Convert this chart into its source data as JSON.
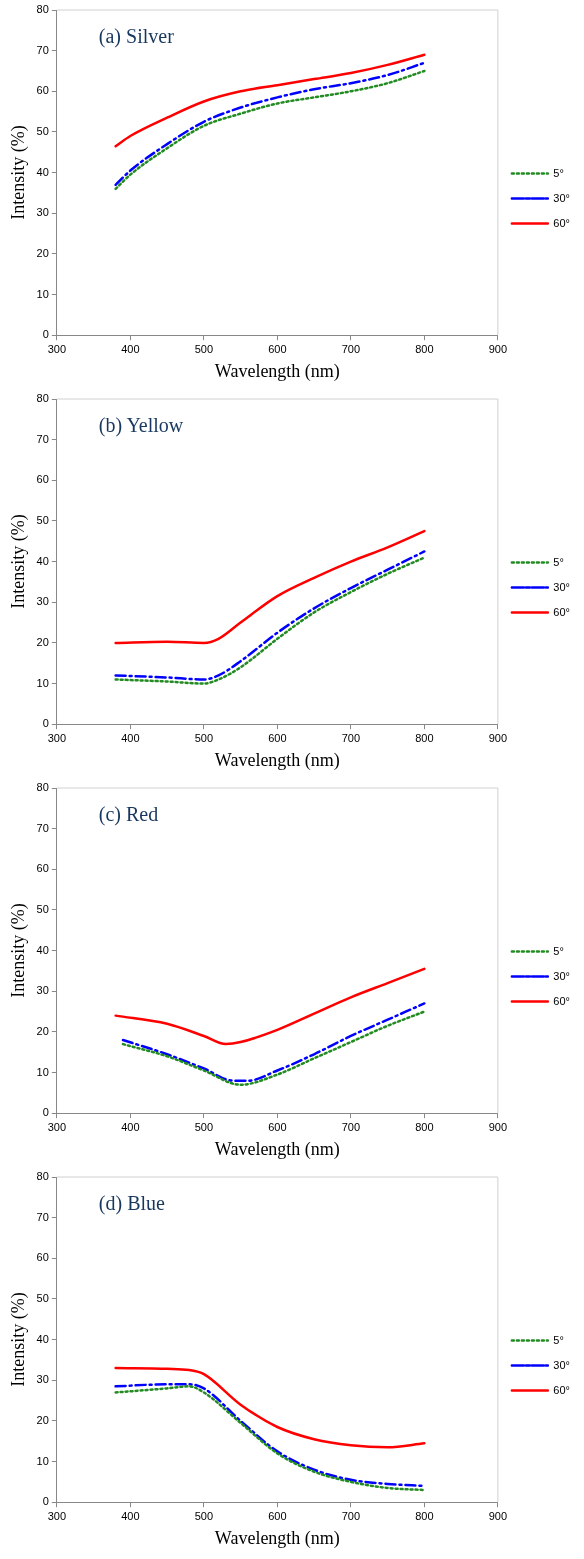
{
  "chart_data": [
    {
      "type": "line",
      "title": "(a) Silver",
      "xlabel": "Wavelength (nm)",
      "ylabel": "Intensity (%)",
      "xlim": [
        300,
        900
      ],
      "xticks": [
        300,
        400,
        500,
        600,
        700,
        800,
        900
      ],
      "ylim": [
        0,
        80
      ],
      "yticks": [
        0,
        10,
        20,
        30,
        40,
        50,
        60,
        70,
        80
      ],
      "grid": false,
      "legend": "right",
      "marker": "none",
      "series": [
        {
          "name": "5°",
          "color": "#228b22",
          "line_style": "dotted",
          "x": [
            380,
            400,
            450,
            500,
            550,
            600,
            650,
            700,
            750,
            800
          ],
          "values": [
            36,
            39.5,
            46,
            51.5,
            54.5,
            57,
            58.5,
            60,
            62,
            65
          ]
        },
        {
          "name": "30°",
          "color": "#0000ff",
          "line_style": "dashed",
          "x": [
            380,
            400,
            450,
            500,
            550,
            600,
            650,
            700,
            750,
            800
          ],
          "values": [
            37,
            40.5,
            47,
            52.5,
            56,
            58.5,
            60.5,
            62,
            64,
            67
          ]
        },
        {
          "name": "60°",
          "color": "#ff0000",
          "line_style": "solid",
          "x": [
            380,
            400,
            450,
            500,
            550,
            600,
            650,
            700,
            750,
            800
          ],
          "values": [
            46.5,
            49,
            53.5,
            57.5,
            60,
            61.5,
            63,
            64.5,
            66.5,
            69
          ]
        }
      ]
    },
    {
      "type": "line",
      "title": "(b) Yellow",
      "xlabel": "Wavelength (nm)",
      "ylabel": "Intensity (%)",
      "xlim": [
        300,
        900
      ],
      "xticks": [
        300,
        400,
        500,
        600,
        700,
        800,
        900
      ],
      "ylim": [
        0,
        80
      ],
      "yticks": [
        0,
        10,
        20,
        30,
        40,
        50,
        60,
        70,
        80
      ],
      "grid": false,
      "legend": "right",
      "marker": "none",
      "series": [
        {
          "name": "5°",
          "color": "#228b22",
          "line_style": "dotted",
          "x": [
            380,
            450,
            500,
            520,
            550,
            600,
            650,
            700,
            750,
            800
          ],
          "values": [
            11,
            10.5,
            10,
            11,
            14,
            21,
            27.5,
            32.5,
            37,
            41
          ]
        },
        {
          "name": "30°",
          "color": "#0000ff",
          "line_style": "dashed",
          "x": [
            380,
            450,
            500,
            520,
            550,
            600,
            650,
            700,
            750,
            800
          ],
          "values": [
            12,
            11.5,
            11,
            12,
            15.5,
            22.5,
            28.5,
            33.5,
            38,
            42.5
          ]
        },
        {
          "name": "60°",
          "color": "#ff0000",
          "line_style": "solid",
          "x": [
            380,
            450,
            500,
            520,
            550,
            600,
            650,
            700,
            750,
            800
          ],
          "values": [
            20,
            20.3,
            20,
            21,
            25,
            31.5,
            36,
            40,
            43.5,
            47.5
          ]
        }
      ]
    },
    {
      "type": "line",
      "title": "(c) Red",
      "xlabel": "Wavelength (nm)",
      "ylabel": "Intensity (%)",
      "xlim": [
        300,
        900
      ],
      "xticks": [
        300,
        400,
        500,
        600,
        700,
        800,
        900
      ],
      "ylim": [
        0,
        80
      ],
      "yticks": [
        0,
        10,
        20,
        30,
        40,
        50,
        60,
        70,
        80
      ],
      "grid": false,
      "legend": "right",
      "marker": "none",
      "series": [
        {
          "name": "5°",
          "color": "#228b22",
          "line_style": "dotted",
          "x": [
            390,
            450,
            500,
            550,
            600,
            650,
            700,
            750,
            800
          ],
          "values": [
            17,
            14,
            10.5,
            7,
            9.5,
            13.5,
            17.5,
            21.5,
            25
          ]
        },
        {
          "name": "30°",
          "color": "#0000ff",
          "line_style": "dashed",
          "x": [
            390,
            450,
            500,
            540,
            560,
            600,
            650,
            700,
            750,
            800
          ],
          "values": [
            18,
            14.5,
            11,
            8,
            8,
            10.5,
            14.5,
            19,
            23,
            27
          ]
        },
        {
          "name": "60°",
          "color": "#ff0000",
          "line_style": "solid",
          "x": [
            380,
            450,
            500,
            530,
            550,
            600,
            650,
            700,
            750,
            800
          ],
          "values": [
            24,
            22,
            19,
            17,
            17.5,
            20.5,
            24.5,
            28.5,
            32,
            35.5
          ]
        }
      ]
    },
    {
      "type": "line",
      "title": "(d) Blue",
      "xlabel": "Wavelength (nm)",
      "ylabel": "Intensity (%)",
      "xlim": [
        300,
        900
      ],
      "xticks": [
        300,
        400,
        500,
        600,
        700,
        800,
        900
      ],
      "ylim": [
        0,
        80
      ],
      "yticks": [
        0,
        10,
        20,
        30,
        40,
        50,
        60,
        70,
        80
      ],
      "grid": false,
      "legend": "right",
      "marker": "none",
      "series": [
        {
          "name": "5°",
          "color": "#228b22",
          "line_style": "dotted",
          "x": [
            380,
            450,
            480,
            500,
            550,
            600,
            650,
            700,
            750,
            800
          ],
          "values": [
            27,
            28,
            28.5,
            27,
            19.5,
            12,
            7.5,
            5,
            3.5,
            3
          ]
        },
        {
          "name": "30°",
          "color": "#0000ff",
          "line_style": "dashed",
          "x": [
            380,
            450,
            480,
            500,
            550,
            600,
            650,
            700,
            750,
            800
          ],
          "values": [
            28.5,
            29,
            29,
            28,
            20,
            12.5,
            8,
            5.5,
            4.5,
            4
          ]
        },
        {
          "name": "60°",
          "color": "#ff0000",
          "line_style": "solid",
          "x": [
            380,
            450,
            480,
            500,
            550,
            600,
            650,
            700,
            750,
            800
          ],
          "values": [
            33,
            32.8,
            32.5,
            31.5,
            24,
            18.5,
            15.5,
            14,
            13.5,
            14.5
          ]
        }
      ]
    }
  ]
}
